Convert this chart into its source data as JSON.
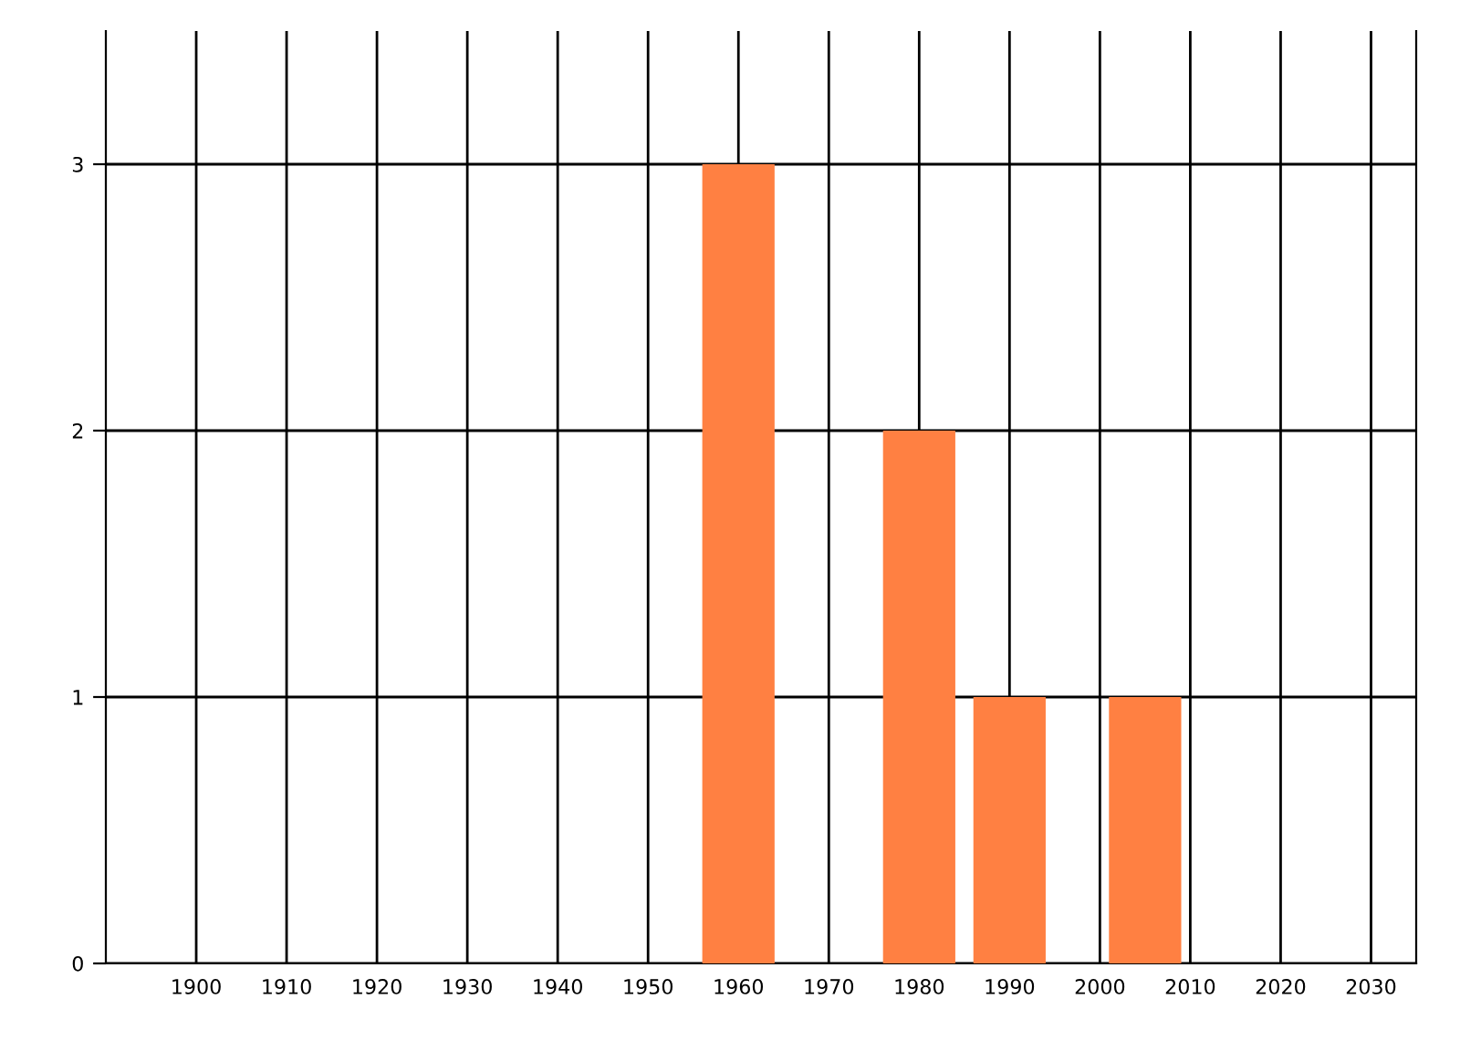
{
  "chart_data": {
    "type": "bar",
    "x": [
      1960,
      1980,
      1990,
      2005
    ],
    "values": [
      3,
      2,
      1,
      1
    ],
    "color": "#ff8042",
    "xlim": [
      1890,
      2035
    ],
    "xticks": [
      1900,
      1910,
      1920,
      1930,
      1940,
      1950,
      1960,
      1970,
      1980,
      1990,
      2000,
      2010,
      2020,
      2030
    ],
    "ylim": [
      0,
      3.5
    ],
    "yticks": [
      0,
      1,
      2,
      3
    ],
    "grid": true
  }
}
